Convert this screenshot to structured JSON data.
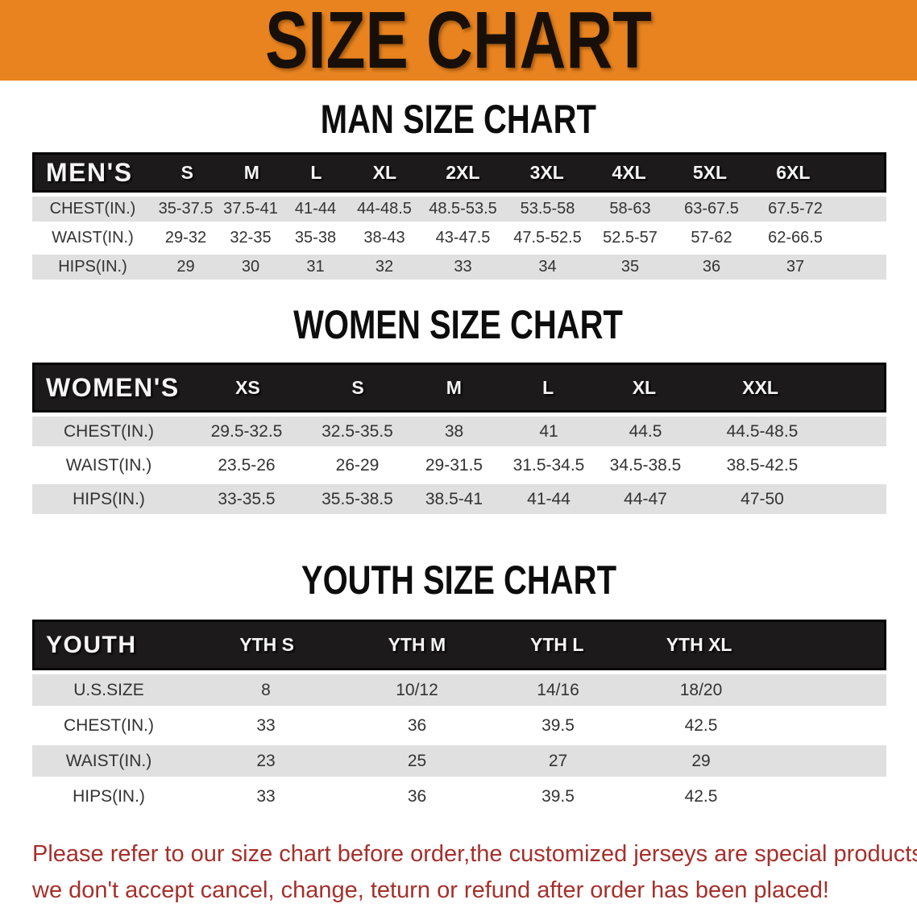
{
  "banner": {
    "title": "SIZE CHART",
    "bg_color": "#E8831F"
  },
  "colors": {
    "banner_bg": "#E8831F",
    "header_bar": "#1c1a1a",
    "row_gray": "#e0e0e0",
    "footer_red": "#A5302B"
  },
  "sections": [
    {
      "heading": "MAN SIZE CHART",
      "corner_label": "MEN'S",
      "columns": [
        "S",
        "M",
        "L",
        "XL",
        "2XL",
        "3XL",
        "4XL",
        "5XL",
        "6XL"
      ],
      "rows": [
        {
          "label": "CHEST(IN.)",
          "values": [
            "35-37.5",
            "37.5-41",
            "41-44",
            "44-48.5",
            "48.5-53.5",
            "53.5-58",
            "58-63",
            "63-67.5",
            "67.5-72"
          ]
        },
        {
          "label": "WAIST(IN.)",
          "values": [
            "29-32",
            "32-35",
            "35-38",
            "38-43",
            "43-47.5",
            "47.5-52.5",
            "52.5-57",
            "57-62",
            "62-66.5"
          ]
        },
        {
          "label": "HIPS(IN.)",
          "values": [
            "29",
            "30",
            "31",
            "32",
            "33",
            "34",
            "35",
            "36",
            "37"
          ]
        }
      ]
    },
    {
      "heading": "WOMEN SIZE CHART",
      "corner_label": "WOMEN'S",
      "columns": [
        "XS",
        "S",
        "M",
        "L",
        "XL",
        "XXL"
      ],
      "rows": [
        {
          "label": "CHEST(IN.)",
          "values": [
            "29.5-32.5",
            "32.5-35.5",
            "38",
            "41",
            "44.5",
            "44.5-48.5"
          ]
        },
        {
          "label": "WAIST(IN.)",
          "values": [
            "23.5-26",
            "26-29",
            "29-31.5",
            "31.5-34.5",
            "34.5-38.5",
            "38.5-42.5"
          ]
        },
        {
          "label": "HIPS(IN.)",
          "values": [
            "33-35.5",
            "35.5-38.5",
            "38.5-41",
            "41-44",
            "44-47",
            "47-50"
          ]
        }
      ]
    },
    {
      "heading": "YOUTH SIZE CHART",
      "corner_label": "YOUTH",
      "columns": [
        "YTH S",
        "YTH M",
        "YTH L",
        "YTH XL"
      ],
      "rows": [
        {
          "label": "U.S.SIZE",
          "values": [
            "8",
            "10/12",
            "14/16",
            "18/20"
          ]
        },
        {
          "label": "CHEST(IN.)",
          "values": [
            "33",
            "36",
            "39.5",
            "42.5"
          ]
        },
        {
          "label": "WAIST(IN.)",
          "values": [
            "23",
            "25",
            "27",
            "29"
          ]
        },
        {
          "label": "HIPS(IN.)",
          "values": [
            "33",
            "36",
            "39.5",
            "42.5"
          ]
        }
      ]
    }
  ],
  "footer": {
    "line1": "Please refer to our size chart before order,the customized jerseys are special products,",
    "line2": "we don't accept cancel, change, teturn or refund after order has been placed!"
  }
}
